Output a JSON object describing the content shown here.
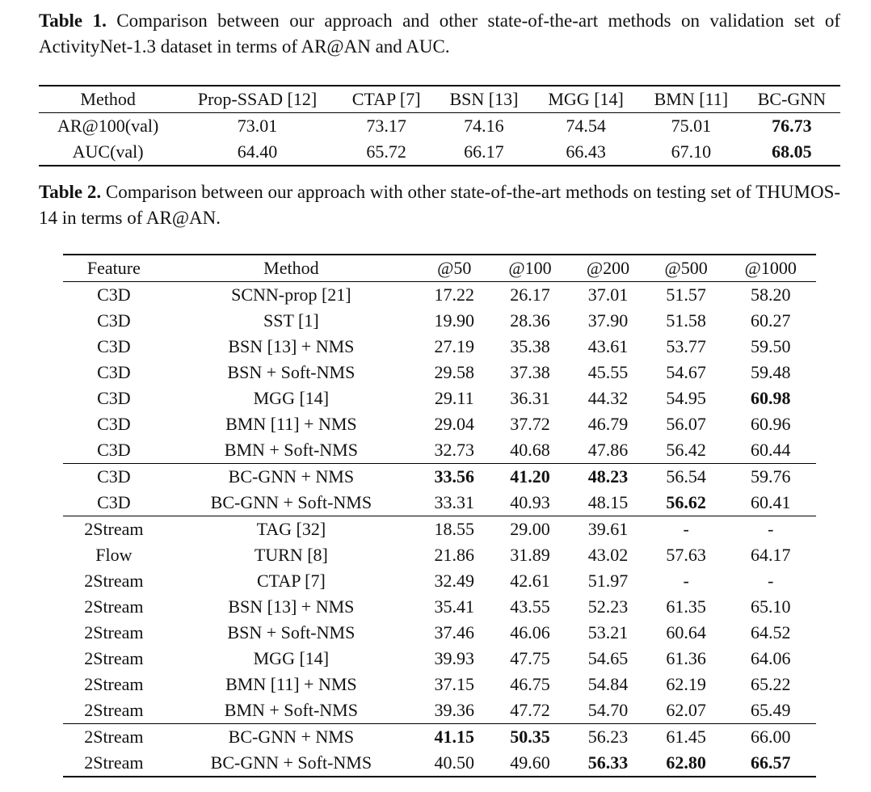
{
  "table1": {
    "caption_label": "Table 1.",
    "caption_text": "Comparison between our approach and other state-of-the-art methods on validation set of ActivityNet-1.3 dataset in terms of AR@AN and AUC.",
    "columns": [
      "Method",
      "Prop-SSAD [12]",
      "CTAP [7]",
      "BSN [13]",
      "MGG [14]",
      "BMN [11]",
      "BC-GNN"
    ],
    "rows": [
      {
        "cells": [
          "AR@100(val)",
          "73.01",
          "73.17",
          "74.16",
          "74.54",
          "75.01",
          "76.73"
        ],
        "bold": [
          6
        ]
      },
      {
        "cells": [
          "AUC(val)",
          "64.40",
          "65.72",
          "66.17",
          "66.43",
          "67.10",
          "68.05"
        ],
        "bold": [
          6
        ]
      }
    ]
  },
  "table2": {
    "caption_label": "Table 2.",
    "caption_text": "Comparison between our approach with other state-of-the-art methods on testing set of THUMOS-14 in terms of AR@AN.",
    "columns": [
      "Feature",
      "Method",
      "@50",
      "@100",
      "@200",
      "@500",
      "@1000"
    ],
    "rows": [
      {
        "cells": [
          "C3D",
          "SCNN-prop [21]",
          "17.22",
          "26.17",
          "37.01",
          "51.57",
          "58.20"
        ],
        "bold": []
      },
      {
        "cells": [
          "C3D",
          "SST [1]",
          "19.90",
          "28.36",
          "37.90",
          "51.58",
          "60.27"
        ],
        "bold": []
      },
      {
        "cells": [
          "C3D",
          "BSN [13] + NMS",
          "27.19",
          "35.38",
          "43.61",
          "53.77",
          "59.50"
        ],
        "bold": []
      },
      {
        "cells": [
          "C3D",
          "BSN + Soft-NMS",
          "29.58",
          "37.38",
          "45.55",
          "54.67",
          "59.48"
        ],
        "bold": []
      },
      {
        "cells": [
          "C3D",
          "MGG [14]",
          "29.11",
          "36.31",
          "44.32",
          "54.95",
          "60.98"
        ],
        "bold": [
          6
        ]
      },
      {
        "cells": [
          "C3D",
          "BMN [11] + NMS",
          "29.04",
          "37.72",
          "46.79",
          "56.07",
          "60.96"
        ],
        "bold": []
      },
      {
        "cells": [
          "C3D",
          "BMN + Soft-NMS",
          "32.73",
          "40.68",
          "47.86",
          "56.42",
          "60.44"
        ],
        "bold": []
      },
      {
        "cells": [
          "C3D",
          "BC-GNN + NMS",
          "33.56",
          "41.20",
          "48.23",
          "56.54",
          "59.76"
        ],
        "bold": [
          2,
          3,
          4
        ],
        "group_start": true
      },
      {
        "cells": [
          "C3D",
          "BC-GNN + Soft-NMS",
          "33.31",
          "40.93",
          "48.15",
          "56.62",
          "60.41"
        ],
        "bold": [
          5
        ]
      },
      {
        "cells": [
          "2Stream",
          "TAG [32]",
          "18.55",
          "29.00",
          "39.61",
          "-",
          "-"
        ],
        "bold": [],
        "group_start": true
      },
      {
        "cells": [
          "Flow",
          "TURN [8]",
          "21.86",
          "31.89",
          "43.02",
          "57.63",
          "64.17"
        ],
        "bold": []
      },
      {
        "cells": [
          "2Stream",
          "CTAP [7]",
          "32.49",
          "42.61",
          "51.97",
          "-",
          "-"
        ],
        "bold": []
      },
      {
        "cells": [
          "2Stream",
          "BSN [13] + NMS",
          "35.41",
          "43.55",
          "52.23",
          "61.35",
          "65.10"
        ],
        "bold": []
      },
      {
        "cells": [
          "2Stream",
          "BSN + Soft-NMS",
          "37.46",
          "46.06",
          "53.21",
          "60.64",
          "64.52"
        ],
        "bold": []
      },
      {
        "cells": [
          "2Stream",
          "MGG [14]",
          "39.93",
          "47.75",
          "54.65",
          "61.36",
          "64.06"
        ],
        "bold": []
      },
      {
        "cells": [
          "2Stream",
          "BMN [11] + NMS",
          "37.15",
          "46.75",
          "54.84",
          "62.19",
          "65.22"
        ],
        "bold": []
      },
      {
        "cells": [
          "2Stream",
          "BMN + Soft-NMS",
          "39.36",
          "47.72",
          "54.70",
          "62.07",
          "65.49"
        ],
        "bold": []
      },
      {
        "cells": [
          "2Stream",
          "BC-GNN + NMS",
          "41.15",
          "50.35",
          "56.23",
          "61.45",
          "66.00"
        ],
        "bold": [
          2,
          3
        ],
        "group_start": true
      },
      {
        "cells": [
          "2Stream",
          "BC-GNN + Soft-NMS",
          "40.50",
          "49.60",
          "56.33",
          "62.80",
          "66.57"
        ],
        "bold": [
          4,
          5,
          6
        ]
      }
    ]
  }
}
